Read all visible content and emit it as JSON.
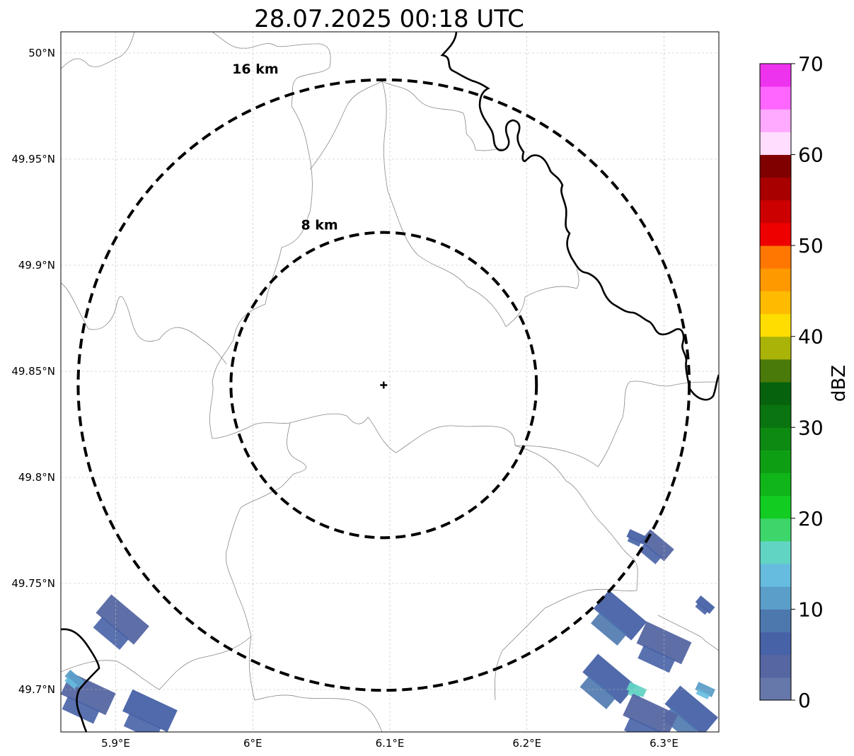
{
  "title": "28.07.2025 00:18 UTC",
  "map": {
    "lon_range": [
      5.86,
      6.34
    ],
    "lat_range": [
      49.68,
      50.01
    ],
    "lon_ticks": [
      {
        "value": 5.9,
        "label": "5.9°E"
      },
      {
        "value": 6.0,
        "label": "6°E"
      },
      {
        "value": 6.1,
        "label": "6.1°E"
      },
      {
        "value": 6.2,
        "label": "6.2°E"
      },
      {
        "value": 6.3,
        "label": "6.3°E"
      }
    ],
    "lat_ticks": [
      {
        "value": 50.0,
        "label": "50°N"
      },
      {
        "value": 49.95,
        "label": "49.95°N"
      },
      {
        "value": 49.9,
        "label": "49.9°N"
      },
      {
        "value": 49.85,
        "label": "49.85°N"
      },
      {
        "value": 49.8,
        "label": "49.8°N"
      },
      {
        "value": 49.75,
        "label": "49.75°N"
      },
      {
        "value": 49.7,
        "label": "49.7°N"
      }
    ],
    "radar_site": {
      "lon": 6.0955,
      "lat": 49.8435
    },
    "range_rings": [
      {
        "radius_km": 8,
        "label": "8 km"
      },
      {
        "radius_km": 16,
        "label": "16 km"
      }
    ],
    "grid": true,
    "grid_color": "#bbbbbb",
    "border_color": "#000000",
    "admin_line_color": "#888888"
  },
  "colorbar": {
    "label": "dBZ",
    "min": 0,
    "max": 70,
    "ticks": [
      {
        "value": 0,
        "label": "0"
      },
      {
        "value": 10,
        "label": "10"
      },
      {
        "value": 20,
        "label": "20"
      },
      {
        "value": 30,
        "label": "30"
      },
      {
        "value": 40,
        "label": "40"
      },
      {
        "value": 50,
        "label": "50"
      },
      {
        "value": 60,
        "label": "60"
      },
      {
        "value": 70,
        "label": "70"
      }
    ],
    "colors": [
      "#6677aa",
      "#5566a2",
      "#4762a6",
      "#4d78ae",
      "#5b9ec9",
      "#66bcde",
      "#62d4c4",
      "#3dd66b",
      "#12cc22",
      "#10b51a",
      "#0e9e14",
      "#0d8a12",
      "#0a7410",
      "#06620c",
      "#4a7a0a",
      "#aab308",
      "#ffdd00",
      "#ffbb00",
      "#ff9900",
      "#ff7700",
      "#ee0000",
      "#cc0000",
      "#a80000",
      "#800000",
      "#ffddff",
      "#ffaaff",
      "#ff66ff",
      "#ee33ee"
    ]
  },
  "echo_cells": [
    {
      "lon": 5.905,
      "lat": 49.733,
      "dbz": 3,
      "size": "large"
    },
    {
      "lon": 5.88,
      "lat": 49.698,
      "dbz": 4,
      "size": "large"
    },
    {
      "lon": 5.87,
      "lat": 49.705,
      "dbz": 12,
      "size": "small"
    },
    {
      "lon": 5.925,
      "lat": 49.69,
      "dbz": 5,
      "size": "large"
    },
    {
      "lon": 6.295,
      "lat": 49.768,
      "dbz": 3,
      "size": "medium"
    },
    {
      "lon": 6.28,
      "lat": 49.772,
      "dbz": 5,
      "size": "small"
    },
    {
      "lon": 6.268,
      "lat": 49.735,
      "dbz": 6,
      "size": "large"
    },
    {
      "lon": 6.3,
      "lat": 49.722,
      "dbz": 4,
      "size": "large"
    },
    {
      "lon": 6.26,
      "lat": 49.705,
      "dbz": 7,
      "size": "large"
    },
    {
      "lon": 6.28,
      "lat": 49.7,
      "dbz": 15,
      "size": "small"
    },
    {
      "lon": 6.32,
      "lat": 49.69,
      "dbz": 6,
      "size": "large"
    },
    {
      "lon": 6.29,
      "lat": 49.688,
      "dbz": 3,
      "size": "large"
    },
    {
      "lon": 6.33,
      "lat": 49.74,
      "dbz": 5,
      "size": "small"
    },
    {
      "lon": 6.33,
      "lat": 49.7,
      "dbz": 11,
      "size": "small"
    }
  ]
}
